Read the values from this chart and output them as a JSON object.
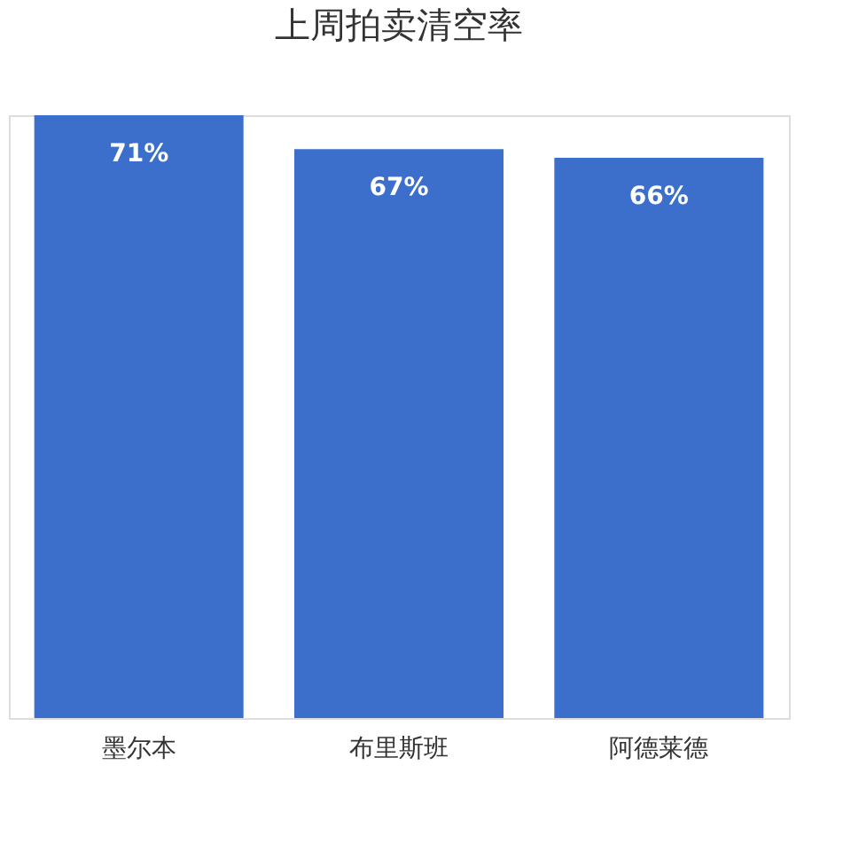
{
  "chart_data": {
    "type": "bar",
    "title": "上周拍卖清空率",
    "categories": [
      "墨尔本",
      "布里斯班",
      "阿德莱德"
    ],
    "values": [
      71,
      67,
      66
    ],
    "value_labels": [
      "71%",
      "67%",
      "66%"
    ],
    "color": "#3b6fcb",
    "grid": false
  }
}
